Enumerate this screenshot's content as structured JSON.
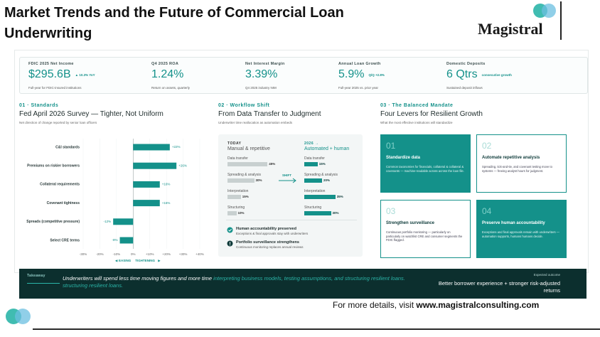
{
  "header": {
    "title": "Market Trends and the Future of Commercial Loan Underwriting",
    "logo": "Magistral"
  },
  "kpis": [
    {
      "label": "FDIC 2025 Net Income",
      "value": "$295.6B",
      "delta": "▲ 10.3% YoY",
      "note": "Full-year for FDIC-insured institutions"
    },
    {
      "label": "Q4 2025 ROA",
      "value": "1.24%",
      "note": "Return on assets, quarterly"
    },
    {
      "label": "Net Interest Margin",
      "value": "3.39%",
      "note": "Q4 2025 industry NIM"
    },
    {
      "label": "Annual Loan Growth",
      "value": "5.9%",
      "delta": "Q/Q +2.8%",
      "note": "Full-year 2025 vs. prior year"
    },
    {
      "label": "Domestic Deposits",
      "value": "6 Qtrs",
      "delta": "consecutive growth",
      "note": "Sustained deposit inflows"
    }
  ],
  "standards": {
    "kicker": "01 · Standards",
    "title": "Fed April 2026 Survey — Tighter, Not Uniform",
    "subtitle": "Net direction of change reported by senior loan officers"
  },
  "chart_data": {
    "type": "bar",
    "orientation": "horizontal",
    "categories": [
      "C&I standards",
      "Premiums on riskier borrowers",
      "Collateral requirements",
      "Covenant tightness",
      "Spreads (competitive pressure)",
      "Select CRE terms"
    ],
    "values": [
      22,
      26,
      16,
      16,
      -12,
      -8
    ],
    "value_labels": [
      "+22%",
      "+26%",
      "+16%",
      "+16%",
      "-12%",
      "-8%"
    ],
    "color": "#14918a",
    "xlim": [
      -30,
      40
    ],
    "xticks": [
      {
        "value": -30,
        "label": "-30%"
      },
      {
        "value": -20,
        "label": "-20%"
      },
      {
        "value": -10,
        "label": "-10%"
      },
      {
        "value": 0,
        "label": "0%"
      },
      {
        "value": 10,
        "label": "+10%"
      },
      {
        "value": 20,
        "label": "+20%"
      },
      {
        "value": 30,
        "label": "+30%"
      },
      {
        "value": 40,
        "label": "+40%"
      }
    ],
    "legend": {
      "left": "EASING",
      "right": "TIGHTENING"
    }
  },
  "workflow": {
    "kicker": "02 · Workflow Shift",
    "title": "From Data Transfer to Judgment",
    "subtitle": "Underwriter time reallocation as automation embeds",
    "today_title": "TODAY",
    "today_subtitle": "Manual & repetitive",
    "future_title": "2026 →",
    "future_subtitle": "Automated + human",
    "shift": "SHIFT",
    "rows": [
      {
        "label": "Data transfer",
        "today": 45,
        "today_label": "45%",
        "future": 15,
        "future_label": "15%"
      },
      {
        "label": "Spreading & analysis",
        "today": 30,
        "today_label": "30%",
        "future": 20,
        "future_label": "20%"
      },
      {
        "label": "Interpretation",
        "today": 15,
        "today_label": "15%",
        "future": 35,
        "future_label": "35%"
      },
      {
        "label": "Structuring",
        "today": 10,
        "today_label": "10%",
        "future": 30,
        "future_label": "30%"
      }
    ],
    "notes": [
      {
        "title": "Human accountability preserved",
        "text": "Exceptions & final approvals stay with underwriters"
      },
      {
        "title": "Portfolio surveillance strengthens",
        "text": "Continuous monitoring replaces annual reviews"
      }
    ]
  },
  "mandate": {
    "kicker": "03 · The Balanced Mandate",
    "title": "Four Levers for Resilient Growth",
    "subtitle": "What the most effective institutions will standardize",
    "cards": [
      {
        "number": "01",
        "title": "Standardize data",
        "text": "Common taxonomies for financials, collateral & collateral & covenants — machine-readable across across the loan file.",
        "style": "filled"
      },
      {
        "number": "02",
        "title": "Automate repetitive analysis",
        "text": "Spreading, tick-and-tie, and covenant testing move to systems — freeing analyst hours for judgment.",
        "style": "outline"
      },
      {
        "number": "03",
        "title": "Strengthen surveillance",
        "text": "Continuous portfolio monitoring — particularly on particularly on watchlist CRE and consumer segments the FDIC flagged.",
        "style": "outline"
      },
      {
        "number": "04",
        "title": "Preserve human accountability",
        "text": "Exceptions and final approvals remain with underwriters — automation supports, humans humans decide.",
        "style": "filled"
      }
    ]
  },
  "takeaway": {
    "label": "Takeaway",
    "text": "Underwriters will spend less time moving figures and more time",
    "highlight": "interpreting business models, testing assumptions, and structuring resilient loans. structuring resilient loans.",
    "outcome_label": "Expected outcome",
    "outcome": "Better borrower experience + stronger risk-adjusted returns"
  },
  "footer": {
    "text": "For more details, visit",
    "link": "www.magistralconsulting.com"
  }
}
